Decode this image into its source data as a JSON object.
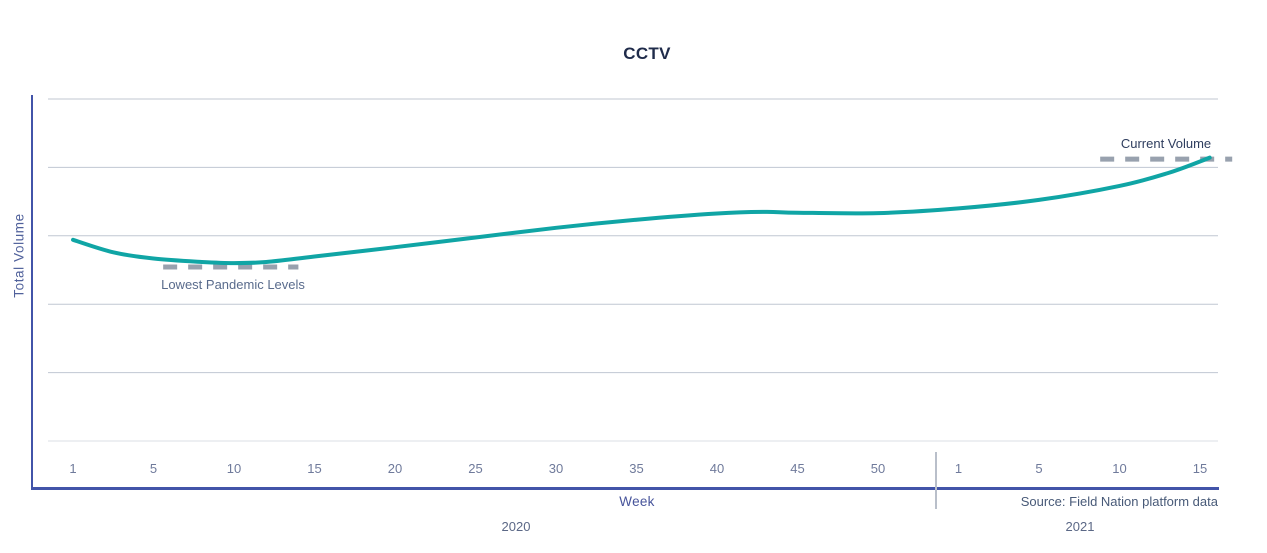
{
  "chart_data": {
    "type": "line",
    "title": "CCTV",
    "xlabel": "Week",
    "ylabel": "Total Volume",
    "source": "Source: Field Nation platform data",
    "colors": {
      "line": "#10a5a5",
      "axis": "#4254a9",
      "grid": "#c0c7d2",
      "grid_last": "#dbdfe6",
      "annotation_dash": "#98a1ae"
    },
    "x_axis": {
      "groups": [
        {
          "year": "2020",
          "ticks": [
            1,
            5,
            10,
            15,
            20,
            25,
            30,
            35,
            40,
            45,
            50
          ]
        },
        {
          "year": "2021",
          "ticks": [
            1,
            5,
            10,
            15
          ]
        }
      ]
    },
    "y_axis": {
      "tick_labels_visible": false,
      "gridline_count": 6,
      "value_range": [
        0,
        100
      ]
    },
    "series": [
      {
        "name": "Total Volume",
        "points": [
          {
            "year": "2020",
            "week": 1,
            "value": 63.7
          },
          {
            "year": "2020",
            "week": 3,
            "value": 60.5
          },
          {
            "year": "2020",
            "week": 5,
            "value": 58.9
          },
          {
            "year": "2020",
            "week": 8,
            "value": 58.0
          },
          {
            "year": "2020",
            "week": 10,
            "value": 57.7
          },
          {
            "year": "2020",
            "week": 12,
            "value": 58.0
          },
          {
            "year": "2020",
            "week": 15,
            "value": 59.4
          },
          {
            "year": "2020",
            "week": 20,
            "value": 61.8
          },
          {
            "year": "2020",
            "week": 25,
            "value": 64.3
          },
          {
            "year": "2020",
            "week": 30,
            "value": 66.8
          },
          {
            "year": "2020",
            "week": 35,
            "value": 68.9
          },
          {
            "year": "2020",
            "week": 40,
            "value": 70.5
          },
          {
            "year": "2020",
            "week": 43,
            "value": 70.9
          },
          {
            "year": "2020",
            "week": 45,
            "value": 70.7
          },
          {
            "year": "2020",
            "week": 50,
            "value": 70.6
          },
          {
            "year": "2021",
            "week": 1,
            "value": 71.8
          },
          {
            "year": "2021",
            "week": 5,
            "value": 74.0
          },
          {
            "year": "2021",
            "week": 10,
            "value": 77.6
          },
          {
            "year": "2021",
            "week": 13,
            "value": 80.9
          },
          {
            "year": "2021",
            "week": 15,
            "value": 83.9
          },
          {
            "year": "2021",
            "week": 15.6,
            "value": 84.9
          }
        ]
      }
    ],
    "annotations": [
      {
        "label": "Lowest Pandemic Levels",
        "value": 56.7,
        "year": "2020",
        "week_start": 5.6,
        "week_end": 14,
        "style": "dashed"
      },
      {
        "label": "Current Volume",
        "value": 84.5,
        "year": "2021",
        "week_start": 8.8,
        "week_end": 17,
        "style": "dashed"
      }
    ]
  }
}
